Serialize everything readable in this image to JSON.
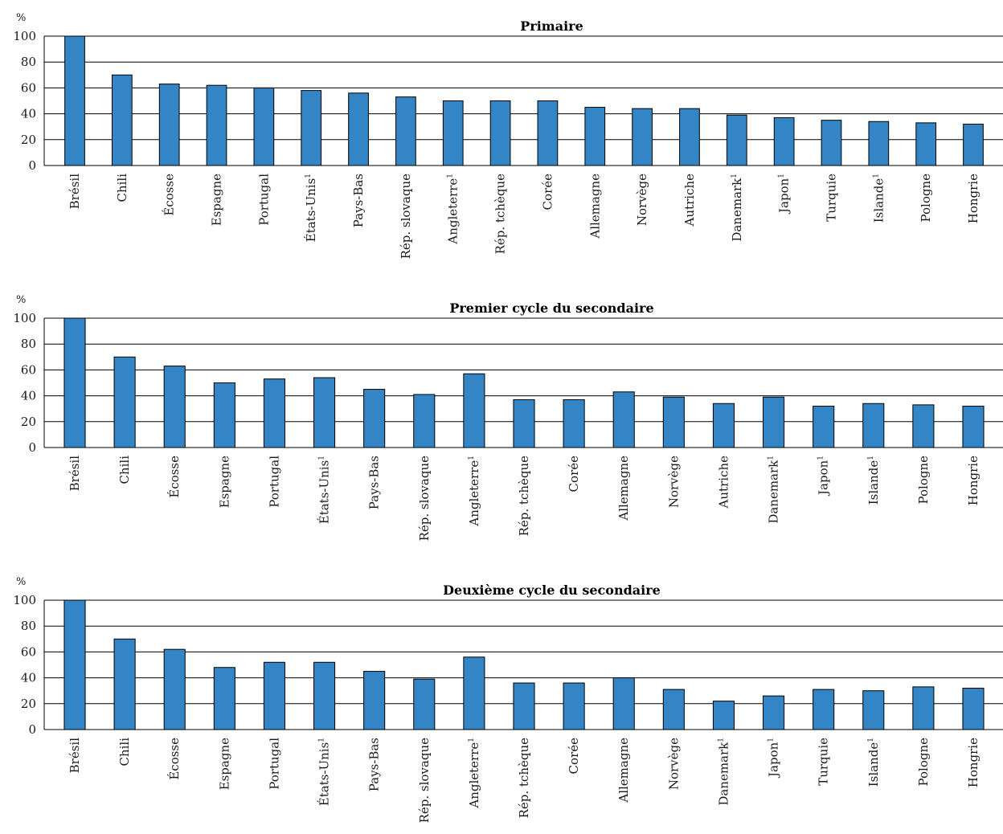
{
  "chart_data": [
    {
      "type": "bar",
      "title": "Primaire",
      "ylabel": "%",
      "ylim": [
        0,
        100
      ],
      "yticks": [
        "0",
        "20",
        "40",
        "60",
        "80",
        "100"
      ],
      "categories": [
        "Brésil",
        "Chili",
        "Écosse",
        "Espagne",
        "Portugal",
        "États-Unis",
        "Pays-Bas",
        "Rép. slovaque",
        "Angleterre",
        "Rép. tchèque",
        "Corée",
        "Allemagne",
        "Norvège",
        "Autriche",
        "Danemark",
        "Japon",
        "Turquie",
        "Islande",
        "Pologne",
        "Hongrie"
      ],
      "footnotes": [
        "",
        "",
        "",
        "",
        "",
        "1",
        "",
        "",
        "1",
        "",
        "",
        "",
        "",
        "",
        "1",
        "1",
        "",
        "1",
        "",
        ""
      ],
      "values": [
        100,
        70,
        63,
        62,
        60,
        58,
        56,
        53,
        50,
        50,
        50,
        45,
        44,
        44,
        39,
        37,
        35,
        34,
        33,
        32
      ],
      "color": "#3385c6",
      "grid": true
    },
    {
      "type": "bar",
      "title": "Premier cycle du secondaire",
      "ylabel": "%",
      "ylim": [
        0,
        100
      ],
      "yticks": [
        "0",
        "20",
        "40",
        "60",
        "80",
        "100"
      ],
      "categories": [
        "Brésil",
        "Chili",
        "Écosse",
        "Espagne",
        "Portugal",
        "États-Unis",
        "Pays-Bas",
        "Rép. slovaque",
        "Angleterre",
        "Rép. tchèque",
        "Corée",
        "Allemagne",
        "Norvège",
        "Autriche",
        "Danemark",
        "Japon",
        "Islande",
        "Pologne",
        "Hongrie"
      ],
      "footnotes": [
        "",
        "",
        "",
        "",
        "",
        "1",
        "",
        "",
        "1",
        "",
        "",
        "",
        "",
        "",
        "1",
        "1",
        "1",
        "",
        ""
      ],
      "values": [
        100,
        70,
        63,
        50,
        53,
        54,
        45,
        41,
        57,
        37,
        37,
        43,
        39,
        34,
        39,
        32,
        34,
        33,
        32
      ],
      "color": "#3385c6",
      "grid": true
    },
    {
      "type": "bar",
      "title": "Deuxième cycle du secondaire",
      "ylabel": "%",
      "ylim": [
        0,
        100
      ],
      "yticks": [
        "0",
        "20",
        "40",
        "60",
        "80",
        "100"
      ],
      "categories": [
        "Brésil",
        "Chili",
        "Écosse",
        "Espagne",
        "Portugal",
        "États-Unis",
        "Pays-Bas",
        "Rép. slovaque",
        "Angleterre",
        "Rép. tchèque",
        "Corée",
        "Allemagne",
        "Norvège",
        "Danemark",
        "Japon",
        "Turquie",
        "Islande",
        "Pologne",
        "Hongrie"
      ],
      "footnotes": [
        "",
        "",
        "",
        "",
        "",
        "1",
        "",
        "",
        "1",
        "",
        "",
        "",
        "",
        "1",
        "1",
        "",
        "1",
        "",
        ""
      ],
      "values": [
        100,
        70,
        62,
        48,
        52,
        52,
        45,
        39,
        56,
        36,
        36,
        40,
        31,
        22,
        26,
        31,
        30,
        33,
        32
      ],
      "color": "#3385c6",
      "grid": true
    }
  ]
}
